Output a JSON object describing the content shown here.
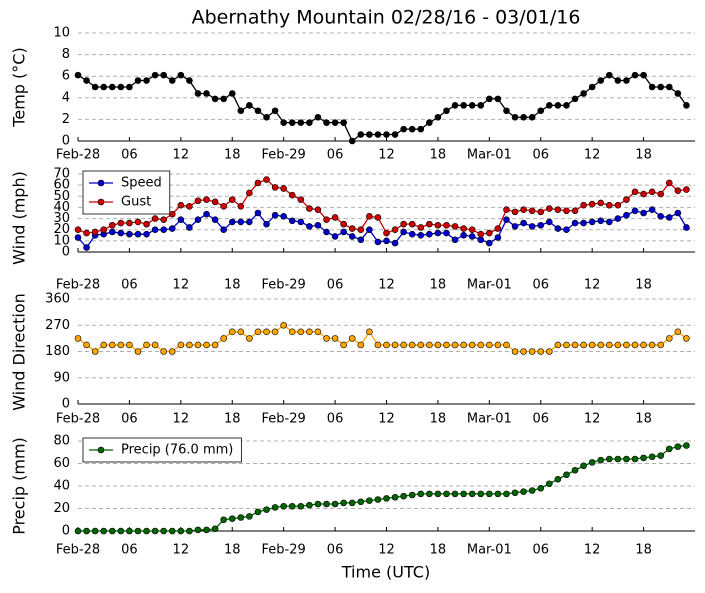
{
  "title": "Abernathy Mountain 02/28/16 - 03/01/16",
  "chart_data": [
    {
      "type": "line",
      "ylabel": "Temp (°C)",
      "x": [
        0,
        1,
        2,
        3,
        4,
        5,
        6,
        7,
        8,
        9,
        10,
        11,
        12,
        13,
        14,
        15,
        16,
        17,
        18,
        19,
        20,
        21,
        22,
        23,
        24,
        25,
        26,
        27,
        28,
        29,
        30,
        31,
        32,
        33,
        34,
        35,
        36,
        37,
        38,
        39,
        40,
        41,
        42,
        43,
        44,
        45,
        46,
        47,
        48,
        49,
        50,
        51,
        52,
        53,
        54,
        55,
        56,
        57,
        58,
        59,
        60,
        61,
        62,
        63,
        64,
        65,
        66,
        67,
        68,
        69,
        70,
        71
      ],
      "xlim": [
        0,
        72
      ],
      "xticks": [
        {
          "value": 0,
          "label": "Feb-28"
        },
        {
          "value": 6,
          "label": "06"
        },
        {
          "value": 12,
          "label": "12"
        },
        {
          "value": 18,
          "label": "18"
        },
        {
          "value": 24,
          "label": "Feb-29"
        },
        {
          "value": 30,
          "label": "06"
        },
        {
          "value": 36,
          "label": "12"
        },
        {
          "value": 42,
          "label": "18"
        },
        {
          "value": 48,
          "label": "Mar-01"
        },
        {
          "value": 54,
          "label": "06"
        },
        {
          "value": 60,
          "label": "12"
        },
        {
          "value": 66,
          "label": "18"
        }
      ],
      "ylim": [
        0,
        10
      ],
      "yticks": [
        0,
        2,
        4,
        6,
        8,
        10
      ],
      "grid": true,
      "series": [
        {
          "color": "#000000",
          "values": [
            6.1,
            5.6,
            5.0,
            5.0,
            5.0,
            5.0,
            5.0,
            5.6,
            5.6,
            6.1,
            6.1,
            5.6,
            6.1,
            5.6,
            4.4,
            4.4,
            3.9,
            3.9,
            4.4,
            2.8,
            3.3,
            2.8,
            2.2,
            2.8,
            1.7,
            1.7,
            1.7,
            1.7,
            2.2,
            1.7,
            1.7,
            1.7,
            0.0,
            0.6,
            0.6,
            0.6,
            0.6,
            0.6,
            1.1,
            1.1,
            1.1,
            1.7,
            2.2,
            2.8,
            3.3,
            3.3,
            3.3,
            3.3,
            3.9,
            3.9,
            2.8,
            2.2,
            2.2,
            2.2,
            2.8,
            3.3,
            3.3,
            3.3,
            3.9,
            4.4,
            5.0,
            5.6,
            6.1,
            5.6,
            5.6,
            6.1,
            6.1,
            5.0,
            5.0,
            5.0,
            4.4,
            3.3
          ]
        }
      ]
    },
    {
      "type": "line",
      "ylabel": "Wind (mph)",
      "x": [
        0,
        1,
        2,
        3,
        4,
        5,
        6,
        7,
        8,
        9,
        10,
        11,
        12,
        13,
        14,
        15,
        16,
        17,
        18,
        19,
        20,
        21,
        22,
        23,
        24,
        25,
        26,
        27,
        28,
        29,
        30,
        31,
        32,
        33,
        34,
        35,
        36,
        37,
        38,
        39,
        40,
        41,
        42,
        43,
        44,
        45,
        46,
        47,
        48,
        49,
        50,
        51,
        52,
        53,
        54,
        55,
        56,
        57,
        58,
        59,
        60,
        61,
        62,
        63,
        64,
        65,
        66,
        67,
        68,
        69,
        70,
        71
      ],
      "xlim": [
        0,
        72
      ],
      "xticks": [
        {
          "value": 0,
          "label": "Feb-28"
        },
        {
          "value": 6,
          "label": "06"
        },
        {
          "value": 12,
          "label": "12"
        },
        {
          "value": 18,
          "label": "18"
        },
        {
          "value": 24,
          "label": "Feb-29"
        },
        {
          "value": 30,
          "label": "06"
        },
        {
          "value": 36,
          "label": "12"
        },
        {
          "value": 42,
          "label": "18"
        },
        {
          "value": 48,
          "label": "Mar-01"
        },
        {
          "value": 54,
          "label": "06"
        },
        {
          "value": 60,
          "label": "12"
        },
        {
          "value": 66,
          "label": "18"
        }
      ],
      "ylim": [
        0,
        70
      ],
      "yticks": [
        0,
        10,
        20,
        30,
        40,
        50,
        60,
        70
      ],
      "grid": true,
      "legend": "upper left",
      "series": [
        {
          "name": "Speed",
          "color": "#0000cc",
          "values": [
            13,
            4,
            15,
            16,
            18,
            17,
            16,
            16,
            16,
            20,
            20,
            21,
            29,
            22,
            29,
            34,
            29,
            20,
            27,
            27,
            27,
            35,
            25,
            33,
            32,
            28,
            27,
            23,
            24,
            18,
            14,
            18,
            14,
            11,
            20,
            9,
            10,
            8,
            18,
            16,
            15,
            16,
            17,
            17,
            11,
            15,
            14,
            11,
            8,
            13,
            29,
            23,
            26,
            23,
            24,
            27,
            21,
            20,
            26,
            26,
            27,
            28,
            27,
            30,
            33,
            37,
            35,
            38,
            32,
            31,
            35,
            22
          ]
        },
        {
          "name": "Gust",
          "color": "#cc0000",
          "values": [
            20,
            17,
            18,
            20,
            24,
            26,
            26,
            27,
            25,
            30,
            29,
            34,
            42,
            41,
            46,
            47,
            45,
            41,
            47,
            41,
            53,
            62,
            65,
            58,
            57,
            51,
            47,
            39,
            38,
            29,
            31,
            25,
            21,
            20,
            32,
            31,
            17,
            20,
            25,
            25,
            22,
            25,
            24,
            24,
            23,
            21,
            20,
            16,
            17,
            21,
            38,
            36,
            38,
            37,
            36,
            39,
            38,
            37,
            37,
            42,
            43,
            44,
            42,
            42,
            47,
            54,
            52,
            54,
            52,
            62,
            55,
            56
          ]
        }
      ]
    },
    {
      "type": "line",
      "ylabel": "Wind Direction",
      "x": [
        0,
        1,
        2,
        3,
        4,
        5,
        6,
        7,
        8,
        9,
        10,
        11,
        12,
        13,
        14,
        15,
        16,
        17,
        18,
        19,
        20,
        21,
        22,
        23,
        24,
        25,
        26,
        27,
        28,
        29,
        30,
        31,
        32,
        33,
        34,
        35,
        36,
        37,
        38,
        39,
        40,
        41,
        42,
        43,
        44,
        45,
        46,
        47,
        48,
        49,
        50,
        51,
        52,
        53,
        54,
        55,
        56,
        57,
        58,
        59,
        60,
        61,
        62,
        63,
        64,
        65,
        66,
        67,
        68,
        69,
        70,
        71
      ],
      "xlim": [
        0,
        72
      ],
      "xticks": [
        {
          "value": 0,
          "label": "Feb-28"
        },
        {
          "value": 6,
          "label": "06"
        },
        {
          "value": 12,
          "label": "12"
        },
        {
          "value": 18,
          "label": "18"
        },
        {
          "value": 24,
          "label": "Feb-29"
        },
        {
          "value": 30,
          "label": "06"
        },
        {
          "value": 36,
          "label": "12"
        },
        {
          "value": 42,
          "label": "18"
        },
        {
          "value": 48,
          "label": "Mar-01"
        },
        {
          "value": 54,
          "label": "06"
        },
        {
          "value": 60,
          "label": "12"
        },
        {
          "value": 66,
          "label": "18"
        }
      ],
      "ylim": [
        0,
        360
      ],
      "yticks": [
        0,
        90,
        180,
        270,
        360
      ],
      "grid": true,
      "series": [
        {
          "color": "#ffa500",
          "values": [
            225,
            202.5,
            180,
            202.5,
            202.5,
            202.5,
            202.5,
            180,
            202.5,
            202.5,
            180,
            180,
            202.5,
            202.5,
            202.5,
            202.5,
            202.5,
            225,
            247.5,
            247.5,
            225,
            247.5,
            247.5,
            247.5,
            270,
            247.5,
            247.5,
            247.5,
            247.5,
            225,
            225,
            202.5,
            225,
            202.5,
            247.5,
            202.5,
            202.5,
            202.5,
            202.5,
            202.5,
            202.5,
            202.5,
            202.5,
            202.5,
            202.5,
            202.5,
            202.5,
            202.5,
            202.5,
            202.5,
            202.5,
            180,
            180,
            180,
            180,
            180,
            202.5,
            202.5,
            202.5,
            202.5,
            202.5,
            202.5,
            202.5,
            202.5,
            202.5,
            202.5,
            202.5,
            202.5,
            202.5,
            225,
            247.5,
            225
          ]
        }
      ]
    },
    {
      "type": "line",
      "ylabel": "Precip (mm)",
      "xlabel": "Time (UTC)",
      "x": [
        0,
        1,
        2,
        3,
        4,
        5,
        6,
        7,
        8,
        9,
        10,
        11,
        12,
        13,
        14,
        15,
        16,
        17,
        18,
        19,
        20,
        21,
        22,
        23,
        24,
        25,
        26,
        27,
        28,
        29,
        30,
        31,
        32,
        33,
        34,
        35,
        36,
        37,
        38,
        39,
        40,
        41,
        42,
        43,
        44,
        45,
        46,
        47,
        48,
        49,
        50,
        51,
        52,
        53,
        54,
        55,
        56,
        57,
        58,
        59,
        60,
        61,
        62,
        63,
        64,
        65,
        66,
        67,
        68,
        69,
        70,
        71
      ],
      "xlim": [
        0,
        72
      ],
      "xticks": [
        {
          "value": 0,
          "label": "Feb-28"
        },
        {
          "value": 6,
          "label": "06"
        },
        {
          "value": 12,
          "label": "12"
        },
        {
          "value": 18,
          "label": "18"
        },
        {
          "value": 24,
          "label": "Feb-29"
        },
        {
          "value": 30,
          "label": "06"
        },
        {
          "value": 36,
          "label": "12"
        },
        {
          "value": 42,
          "label": "18"
        },
        {
          "value": 48,
          "label": "Mar-01"
        },
        {
          "value": 54,
          "label": "06"
        },
        {
          "value": 60,
          "label": "12"
        },
        {
          "value": 66,
          "label": "18"
        }
      ],
      "ylim": [
        0,
        80
      ],
      "yticks": [
        0,
        20,
        40,
        60,
        80
      ],
      "grid": true,
      "legend": "upper left",
      "series": [
        {
          "name": "Precip (76.0 mm)",
          "color": "#006400",
          "values": [
            0,
            0,
            0,
            0,
            0,
            0,
            0,
            0,
            0,
            0,
            0,
            0,
            0,
            0,
            1,
            1,
            2,
            10,
            11,
            12,
            13,
            17,
            19,
            21,
            22,
            22,
            22,
            23,
            24,
            24,
            24,
            25,
            25,
            26,
            27,
            28,
            29,
            30,
            31,
            32,
            33,
            33,
            33,
            33,
            33,
            33,
            33,
            33,
            33,
            33,
            33,
            34,
            35,
            36,
            38,
            42,
            46,
            50,
            54,
            58,
            61,
            63,
            64,
            64,
            64,
            64,
            65,
            66,
            67,
            73,
            75,
            76
          ]
        }
      ]
    }
  ]
}
